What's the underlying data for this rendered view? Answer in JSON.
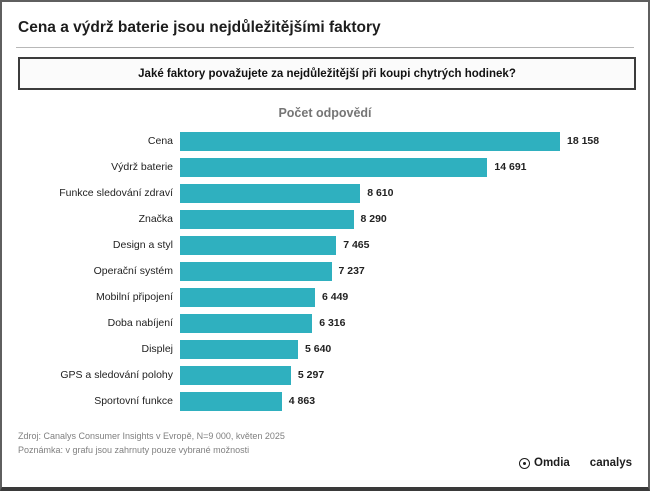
{
  "page": {
    "title": "Cena a výdrž baterie jsou nejdůležitějšími faktory",
    "question": "Jaké faktory považujete za nejdůležitější při koupi chytrých hodinek?"
  },
  "chart_data": {
    "type": "bar",
    "orientation": "horizontal",
    "title": "Počet odpovědí",
    "categories": [
      "Cena",
      "Výdrž baterie",
      "Funkce sledování zdraví",
      "Značka",
      "Design a styl",
      "Operační systém",
      "Mobilní připojení",
      "Doba nabíjení",
      "Displej",
      "GPS a sledování polohy",
      "Sportovní funkce"
    ],
    "values": [
      18158,
      14691,
      8610,
      8290,
      7465,
      7237,
      6449,
      6316,
      5640,
      5297,
      4863
    ],
    "value_labels": [
      "18 158",
      "14 691",
      "8 610",
      "8 290",
      "7 465",
      "7 237",
      "6 449",
      "6 316",
      "5 640",
      "5 297",
      "4 863"
    ],
    "bar_color": "#2FB0BF",
    "xlim": [
      0,
      18158
    ],
    "grid": false,
    "legend": "none",
    "value_labels_position": "end-of-bar"
  },
  "footer": {
    "source": "Zdroj: Canalys Consumer Insights v Evropě, N=9 000, květen 2025",
    "note": "Poznámka: v grafu jsou zahrnuty pouze vybrané možnosti",
    "brand_omdia": "Omdia",
    "brand_canalys": "canalys"
  }
}
